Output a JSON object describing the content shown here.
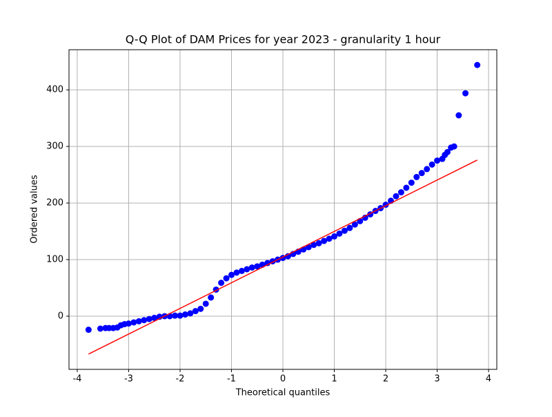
{
  "chart_data": {
    "type": "scatter",
    "title": "Q-Q Plot of DAM Prices for year 2023 - granularity 1 hour",
    "x_label": "Theoretical quantiles",
    "y_label": "Ordered values",
    "xlim": [
      -4.16,
      4.16
    ],
    "ylim": [
      -94,
      471
    ],
    "xticks": [
      -4,
      -3,
      -2,
      -1,
      0,
      1,
      2,
      3,
      4
    ],
    "yticks": [
      0,
      100,
      200,
      300,
      400
    ],
    "grid": true,
    "series": [
      {
        "color": "#0000ff",
        "x": [
          -3.78,
          -3.55,
          -3.45,
          -3.38,
          -3.3,
          -3.22,
          -3.15,
          -3.08,
          -3.0,
          -2.9,
          -2.8,
          -2.7,
          -2.6,
          -2.5,
          -2.4,
          -2.3,
          -2.2,
          -2.1,
          -2.0,
          -1.9,
          -1.8,
          -1.7,
          -1.6,
          -1.5,
          -1.4,
          -1.3,
          -1.2,
          -1.1,
          -1.0,
          -0.9,
          -0.8,
          -0.7,
          -0.6,
          -0.5,
          -0.4,
          -0.3,
          -0.2,
          -0.1,
          0,
          0.1,
          0.2,
          0.3,
          0.4,
          0.5,
          0.6,
          0.7,
          0.8,
          0.9,
          1.0,
          1.1,
          1.2,
          1.3,
          1.4,
          1.5,
          1.6,
          1.7,
          1.8,
          1.9,
          2.0,
          2.1,
          2.2,
          2.3,
          2.4,
          2.5,
          2.6,
          2.7,
          2.8,
          2.9,
          3.0,
          3.1,
          3.15,
          3.2,
          3.27,
          3.33,
          3.42,
          3.55,
          3.78
        ],
        "values": [
          -24,
          -22,
          -21,
          -21,
          -21,
          -20,
          -16,
          -14,
          -13,
          -11,
          -9,
          -7,
          -5,
          -3,
          -1,
          0,
          0,
          1,
          1,
          3,
          5,
          9,
          13,
          22,
          33,
          47,
          59,
          67,
          73,
          77,
          80,
          83,
          86,
          88,
          91,
          94,
          97,
          100,
          103,
          106,
          110,
          114,
          118,
          122,
          126,
          129,
          133,
          137,
          141,
          146,
          151,
          156,
          162,
          168,
          174,
          180,
          186,
          191,
          197,
          204,
          212,
          219,
          227,
          236,
          246,
          253,
          260,
          268,
          275,
          278,
          285,
          290,
          298,
          300,
          355,
          394,
          444
        ]
      }
    ],
    "fit_line": {
      "color": "#ff0000",
      "x": [
        -3.78,
        3.78
      ],
      "values": [
        -67,
        276
      ]
    }
  }
}
